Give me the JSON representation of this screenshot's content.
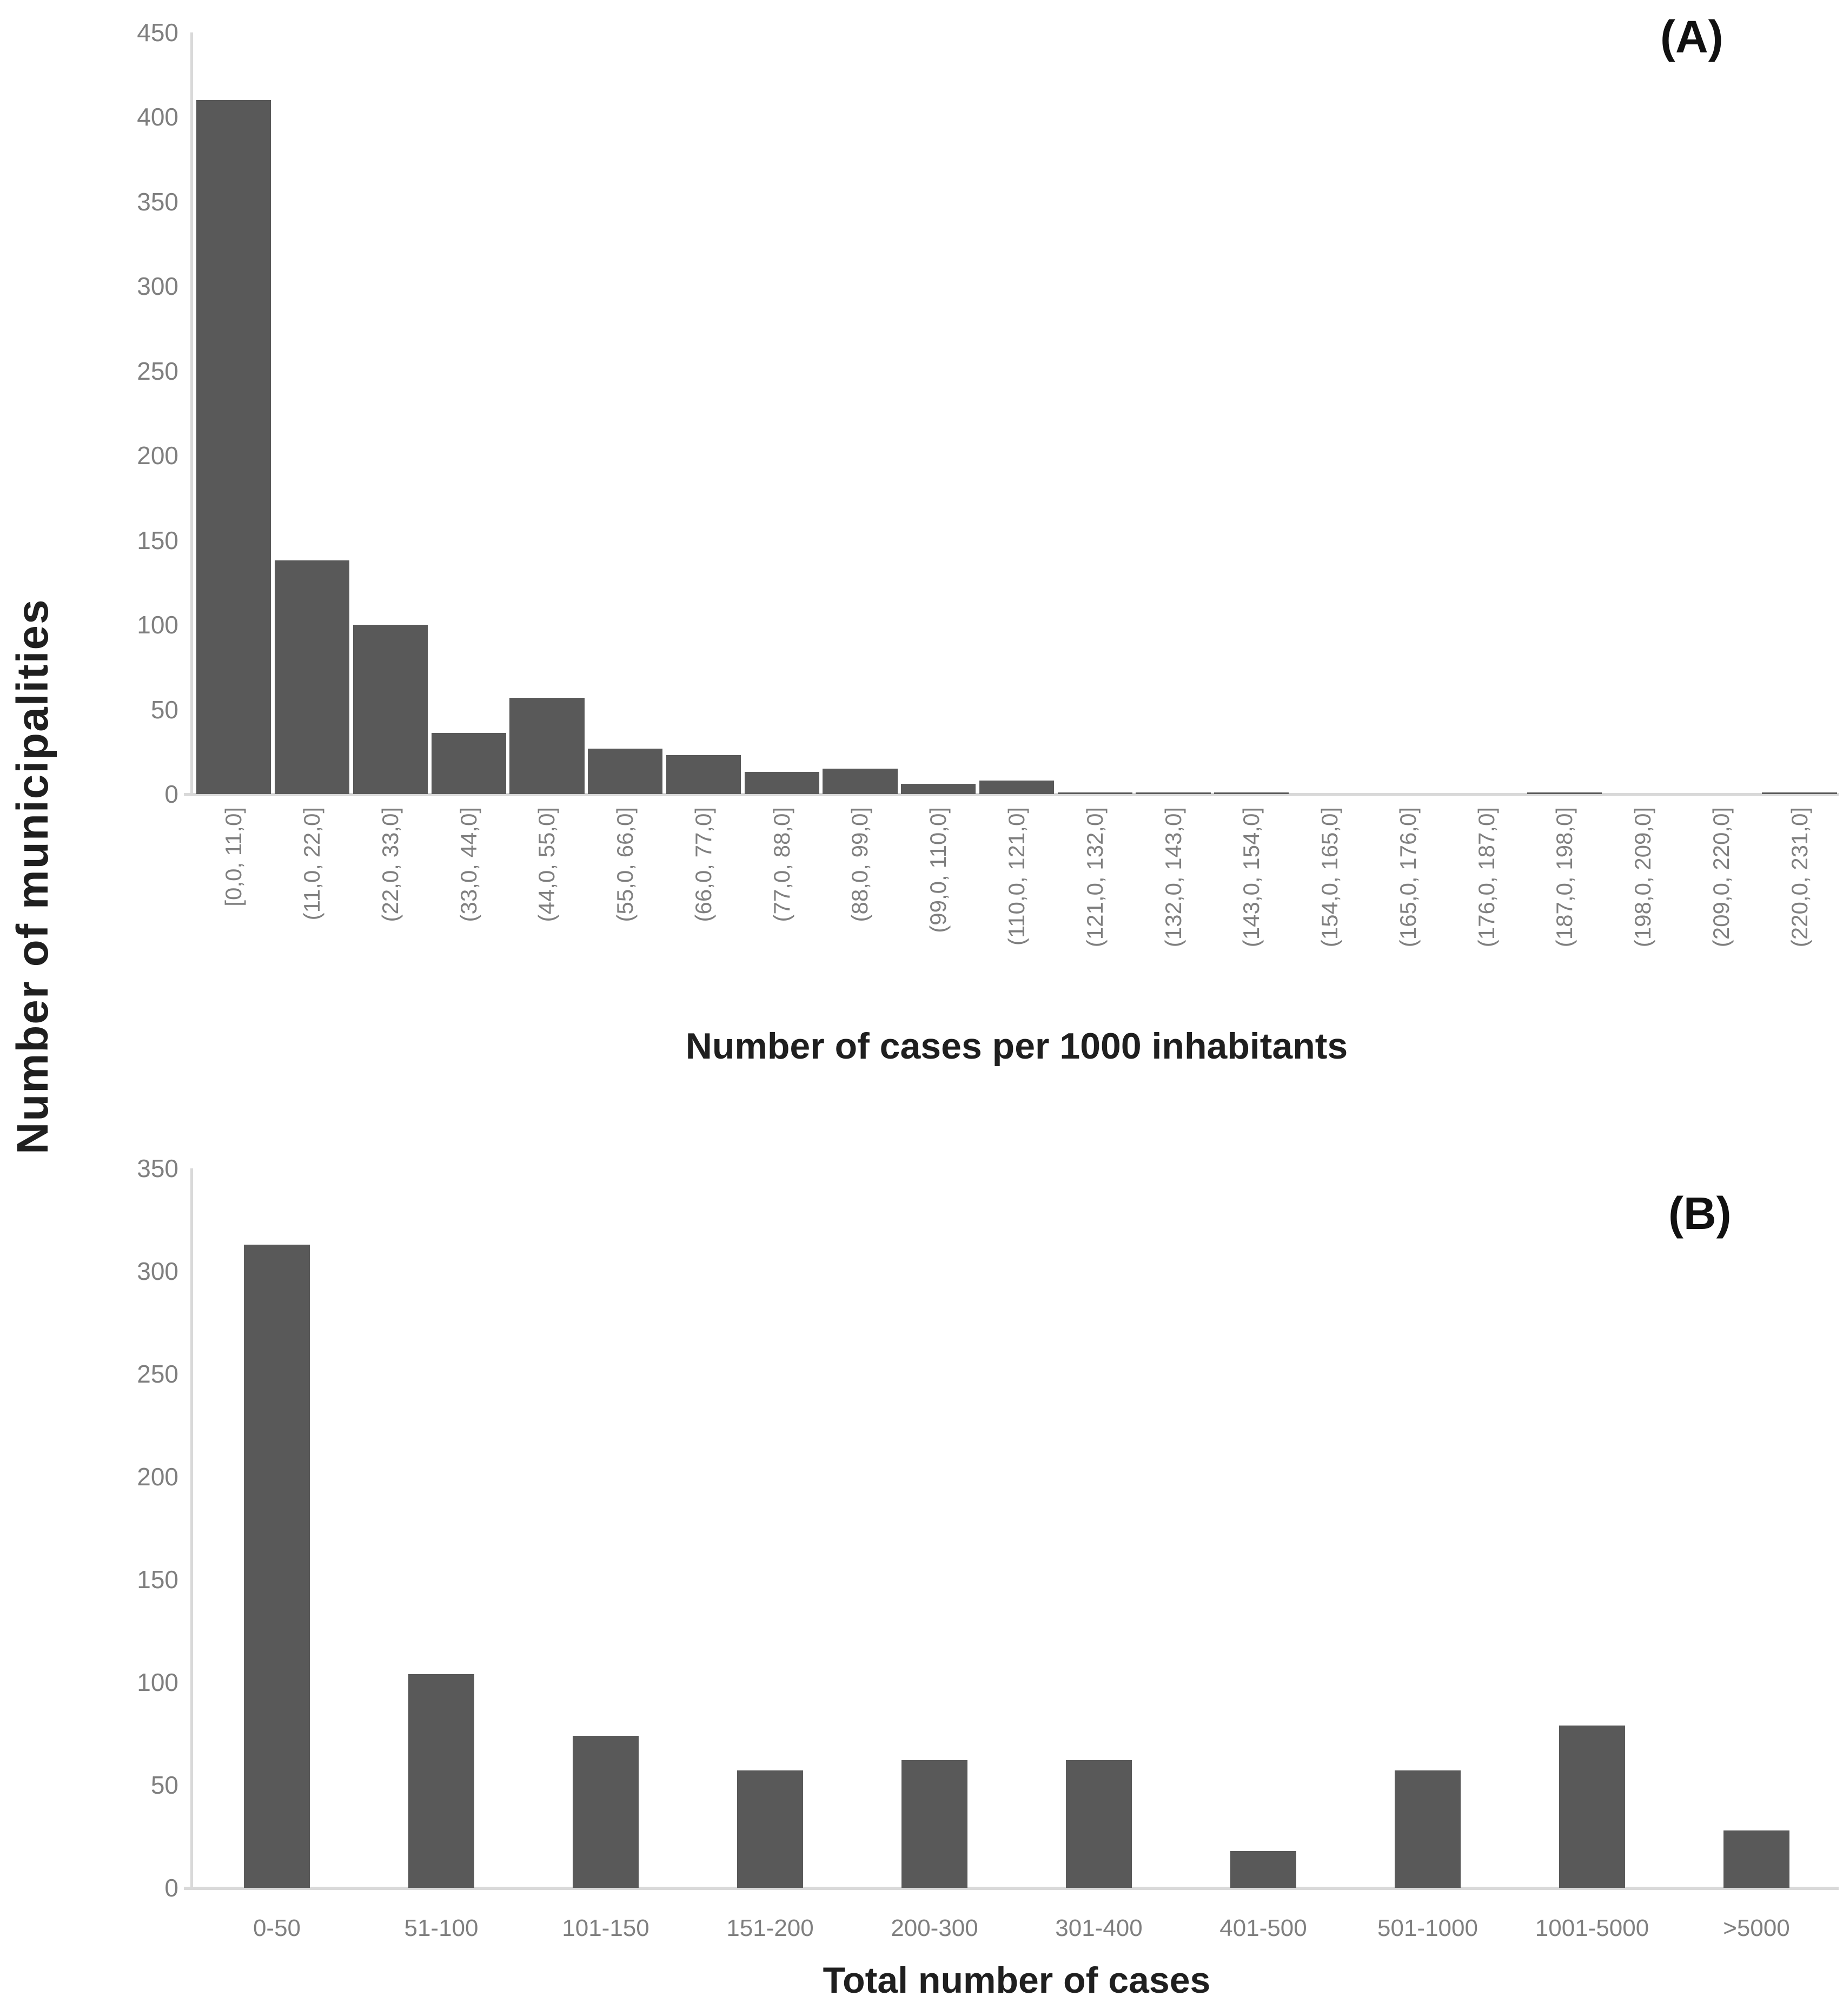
{
  "shared": {
    "y_axis_title": "Number of municipalities",
    "background": "#ffffff"
  },
  "colors": {
    "bar": "#595959",
    "tick_text": "#7f7f7f",
    "axis_line": "#d9d9d9",
    "title_text": "#1f1f1f"
  },
  "chart_data": [
    {
      "type": "bar",
      "panel_label": "(A)",
      "xlabel": "Number of cases per 1000 inhabitants",
      "ylabel": "Number of municipalities",
      "ylim": [
        0,
        450
      ],
      "yticks": [
        450,
        400,
        350,
        300,
        250,
        200,
        150,
        100,
        50,
        0
      ],
      "grid": false,
      "legend": false,
      "x_tick_rotation": 90,
      "categories": [
        "[0,0, 11,0]",
        "(11,0, 22,0]",
        "(22,0, 33,0]",
        "(33,0, 44,0]",
        "(44,0, 55,0]",
        "(55,0, 66,0]",
        "(66,0, 77,0]",
        "(77,0, 88,0]",
        "(88,0, 99,0]",
        "(99,0, 110,0]",
        "(110,0, 121,0]",
        "(121,0, 132,0]",
        "(132,0, 143,0]",
        "(143,0, 154,0]",
        "(154,0, 165,0]",
        "(165,0, 176,0]",
        "(176,0, 187,0]",
        "(187,0, 198,0]",
        "(198,0, 209,0]",
        "(209,0, 220,0]",
        "(220,0, 231,0]"
      ],
      "values": [
        410,
        138,
        100,
        36,
        57,
        27,
        23,
        13,
        15,
        6,
        8,
        1,
        1,
        1,
        0,
        0,
        0,
        1,
        0,
        0,
        1
      ]
    },
    {
      "type": "bar",
      "panel_label": "(B)",
      "xlabel": "Total number of cases",
      "ylabel": "Number of municipalities",
      "ylim": [
        0,
        350
      ],
      "yticks": [
        350,
        300,
        250,
        200,
        150,
        100,
        50,
        0
      ],
      "grid": false,
      "legend": false,
      "x_tick_rotation": 0,
      "categories": [
        "0-50",
        "51-100",
        "101-150",
        "151-200",
        "200-300",
        "301-400",
        "401-500",
        "501-1000",
        "1001-5000",
        ">5000"
      ],
      "values": [
        313,
        104,
        74,
        57,
        62,
        62,
        18,
        57,
        79,
        28
      ]
    }
  ]
}
